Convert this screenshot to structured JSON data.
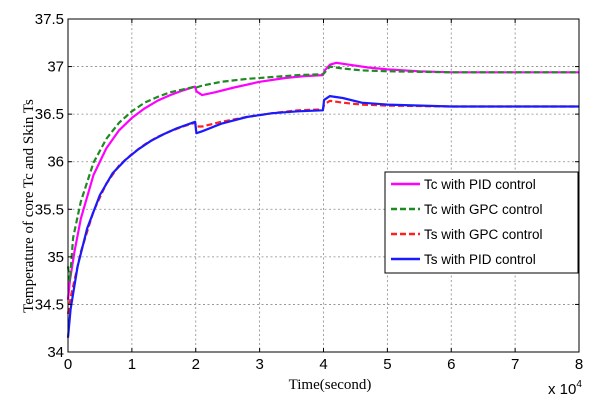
{
  "chart_data": {
    "type": "line",
    "xlabel": "Time(second)",
    "ylabel": "Temperature of core Tc and Skin Ts",
    "x_multiplier_label": "x 10",
    "x_multiplier_exponent": "4",
    "xlim": [
      0,
      80000
    ],
    "ylim": [
      34,
      37.5
    ],
    "grid": true,
    "legend_position": "right-center",
    "x_ticks": [
      {
        "value": 0,
        "label": "0"
      },
      {
        "value": 10000,
        "label": "1"
      },
      {
        "value": 20000,
        "label": "2"
      },
      {
        "value": 30000,
        "label": "3"
      },
      {
        "value": 40000,
        "label": "4"
      },
      {
        "value": 50000,
        "label": "5"
      },
      {
        "value": 60000,
        "label": "6"
      },
      {
        "value": 70000,
        "label": "7"
      },
      {
        "value": 80000,
        "label": "8"
      }
    ],
    "y_ticks": [
      {
        "value": 34,
        "label": "34"
      },
      {
        "value": 34.5,
        "label": "34.5"
      },
      {
        "value": 35,
        "label": "35"
      },
      {
        "value": 35.5,
        "label": "35.5"
      },
      {
        "value": 36,
        "label": "36"
      },
      {
        "value": 36.5,
        "label": "36.5"
      },
      {
        "value": 37,
        "label": "37"
      },
      {
        "value": 37.5,
        "label": "37.5"
      }
    ],
    "series": [
      {
        "name": "Tc with PID control",
        "color": "#ff00ff",
        "dash": "solid",
        "points": [
          [
            0,
            34.55
          ],
          [
            300,
            34.75
          ],
          [
            1000,
            35.05
          ],
          [
            2000,
            35.4
          ],
          [
            4000,
            35.86
          ],
          [
            6000,
            36.14
          ],
          [
            8000,
            36.33
          ],
          [
            10000,
            36.46
          ],
          [
            12000,
            36.56
          ],
          [
            14000,
            36.64
          ],
          [
            16000,
            36.7
          ],
          [
            18000,
            36.75
          ],
          [
            19900,
            36.79
          ],
          [
            20100,
            36.74
          ],
          [
            21000,
            36.7
          ],
          [
            23000,
            36.73
          ],
          [
            26000,
            36.78
          ],
          [
            30000,
            36.84
          ],
          [
            34000,
            36.88
          ],
          [
            37000,
            36.9
          ],
          [
            39900,
            36.91
          ],
          [
            40200,
            36.96
          ],
          [
            41000,
            37.02
          ],
          [
            42000,
            37.04
          ],
          [
            44000,
            37.02
          ],
          [
            47000,
            36.99
          ],
          [
            50000,
            36.97
          ],
          [
            55000,
            36.95
          ],
          [
            60000,
            36.94
          ],
          [
            70000,
            36.94
          ],
          [
            80000,
            36.94
          ]
        ]
      },
      {
        "name": "Tc with GPC control",
        "color": "#1f8a1f",
        "dash": "dashed",
        "points": [
          [
            0,
            34.9
          ],
          [
            300,
            34.75
          ],
          [
            800,
            35.2
          ],
          [
            2000,
            35.58
          ],
          [
            4000,
            35.99
          ],
          [
            6000,
            36.24
          ],
          [
            8000,
            36.41
          ],
          [
            10000,
            36.53
          ],
          [
            12000,
            36.62
          ],
          [
            14000,
            36.68
          ],
          [
            16000,
            36.73
          ],
          [
            18000,
            36.76
          ],
          [
            19900,
            36.79
          ],
          [
            20100,
            36.78
          ],
          [
            21000,
            36.8
          ],
          [
            24000,
            36.84
          ],
          [
            28000,
            36.87
          ],
          [
            32000,
            36.89
          ],
          [
            36000,
            36.91
          ],
          [
            39900,
            36.92
          ],
          [
            40100,
            36.93
          ],
          [
            41000,
            37.0
          ],
          [
            43000,
            36.98
          ],
          [
            46000,
            36.96
          ],
          [
            50000,
            36.95
          ],
          [
            60000,
            36.94
          ],
          [
            70000,
            36.94
          ],
          [
            80000,
            36.94
          ]
        ]
      },
      {
        "name": "Ts with GPC control",
        "color": "#ff2020",
        "dash": "dashed",
        "points": [
          [
            0,
            34.4
          ],
          [
            500,
            34.6
          ],
          [
            2000,
            35.05
          ],
          [
            4000,
            35.48
          ],
          [
            6000,
            35.77
          ],
          [
            8000,
            35.96
          ],
          [
            10000,
            36.08
          ],
          [
            12000,
            36.18
          ],
          [
            14000,
            36.26
          ],
          [
            16000,
            36.32
          ],
          [
            18000,
            36.37
          ],
          [
            19900,
            36.41
          ],
          [
            20100,
            36.37
          ],
          [
            21000,
            36.37
          ],
          [
            24000,
            36.42
          ],
          [
            28000,
            36.47
          ],
          [
            32000,
            36.51
          ],
          [
            36000,
            36.54
          ],
          [
            39900,
            36.55
          ],
          [
            40100,
            36.6
          ],
          [
            41000,
            36.64
          ],
          [
            43000,
            36.62
          ],
          [
            46000,
            36.6
          ],
          [
            50000,
            36.59
          ],
          [
            60000,
            36.58
          ],
          [
            70000,
            36.58
          ],
          [
            80000,
            36.58
          ]
        ]
      },
      {
        "name": "Ts with PID control",
        "color": "#1a1aff",
        "dash": "solid",
        "points": [
          [
            0,
            34.15
          ],
          [
            400,
            34.45
          ],
          [
            1500,
            34.9
          ],
          [
            3000,
            35.3
          ],
          [
            5000,
            35.65
          ],
          [
            7000,
            35.88
          ],
          [
            9000,
            36.02
          ],
          [
            11000,
            36.13
          ],
          [
            13000,
            36.22
          ],
          [
            15000,
            36.29
          ],
          [
            17000,
            36.35
          ],
          [
            19900,
            36.42
          ],
          [
            20100,
            36.3
          ],
          [
            21000,
            36.32
          ],
          [
            24000,
            36.4
          ],
          [
            28000,
            36.47
          ],
          [
            32000,
            36.51
          ],
          [
            36000,
            36.53
          ],
          [
            39900,
            36.54
          ],
          [
            40100,
            36.65
          ],
          [
            41000,
            36.69
          ],
          [
            43000,
            36.67
          ],
          [
            46000,
            36.62
          ],
          [
            50000,
            36.6
          ],
          [
            60000,
            36.58
          ],
          [
            70000,
            36.58
          ],
          [
            80000,
            36.58
          ]
        ]
      }
    ]
  }
}
